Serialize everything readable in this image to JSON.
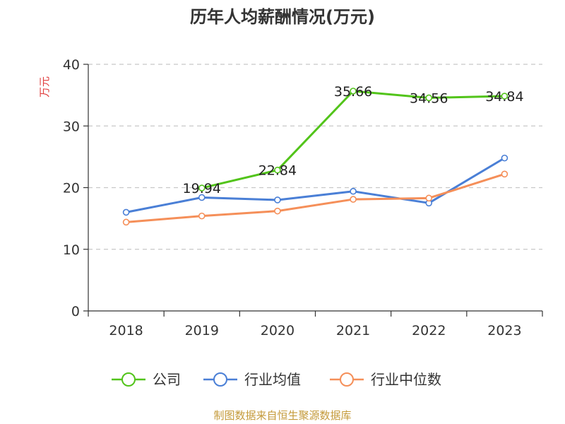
{
  "chart_data": {
    "type": "line",
    "title": "历年人均薪酬情况(万元)",
    "ylabel": "万元",
    "xlabel": "",
    "categories": [
      "2018",
      "2019",
      "2020",
      "2021",
      "2022",
      "2023"
    ],
    "ylim": [
      0,
      40
    ],
    "yticks": [
      0,
      10,
      20,
      30,
      40
    ],
    "grid": true,
    "legend_position": "bottom",
    "series": [
      {
        "name": "公司",
        "color": "#52c41a",
        "values": [
          null,
          19.94,
          22.84,
          35.66,
          34.56,
          34.84
        ],
        "labels": [
          "",
          "19.94",
          "22.84",
          "35.66",
          "34.56",
          "34.84"
        ]
      },
      {
        "name": "行业均值",
        "color": "#4a7fd6",
        "values": [
          16.0,
          18.4,
          18.0,
          19.4,
          17.5,
          24.8
        ],
        "labels": [
          "",
          "",
          "",
          "",
          "",
          ""
        ]
      },
      {
        "name": "行业中位数",
        "color": "#f58f59",
        "values": [
          14.4,
          15.4,
          16.2,
          18.1,
          18.3,
          22.2
        ],
        "labels": [
          "",
          "",
          "",
          "",
          "",
          ""
        ]
      }
    ]
  },
  "colors": {
    "ylabel": "#e03c3c",
    "axis": "#333333",
    "grid": "#c8c8c8"
  },
  "footer": "制图数据来自恒生聚源数据库"
}
